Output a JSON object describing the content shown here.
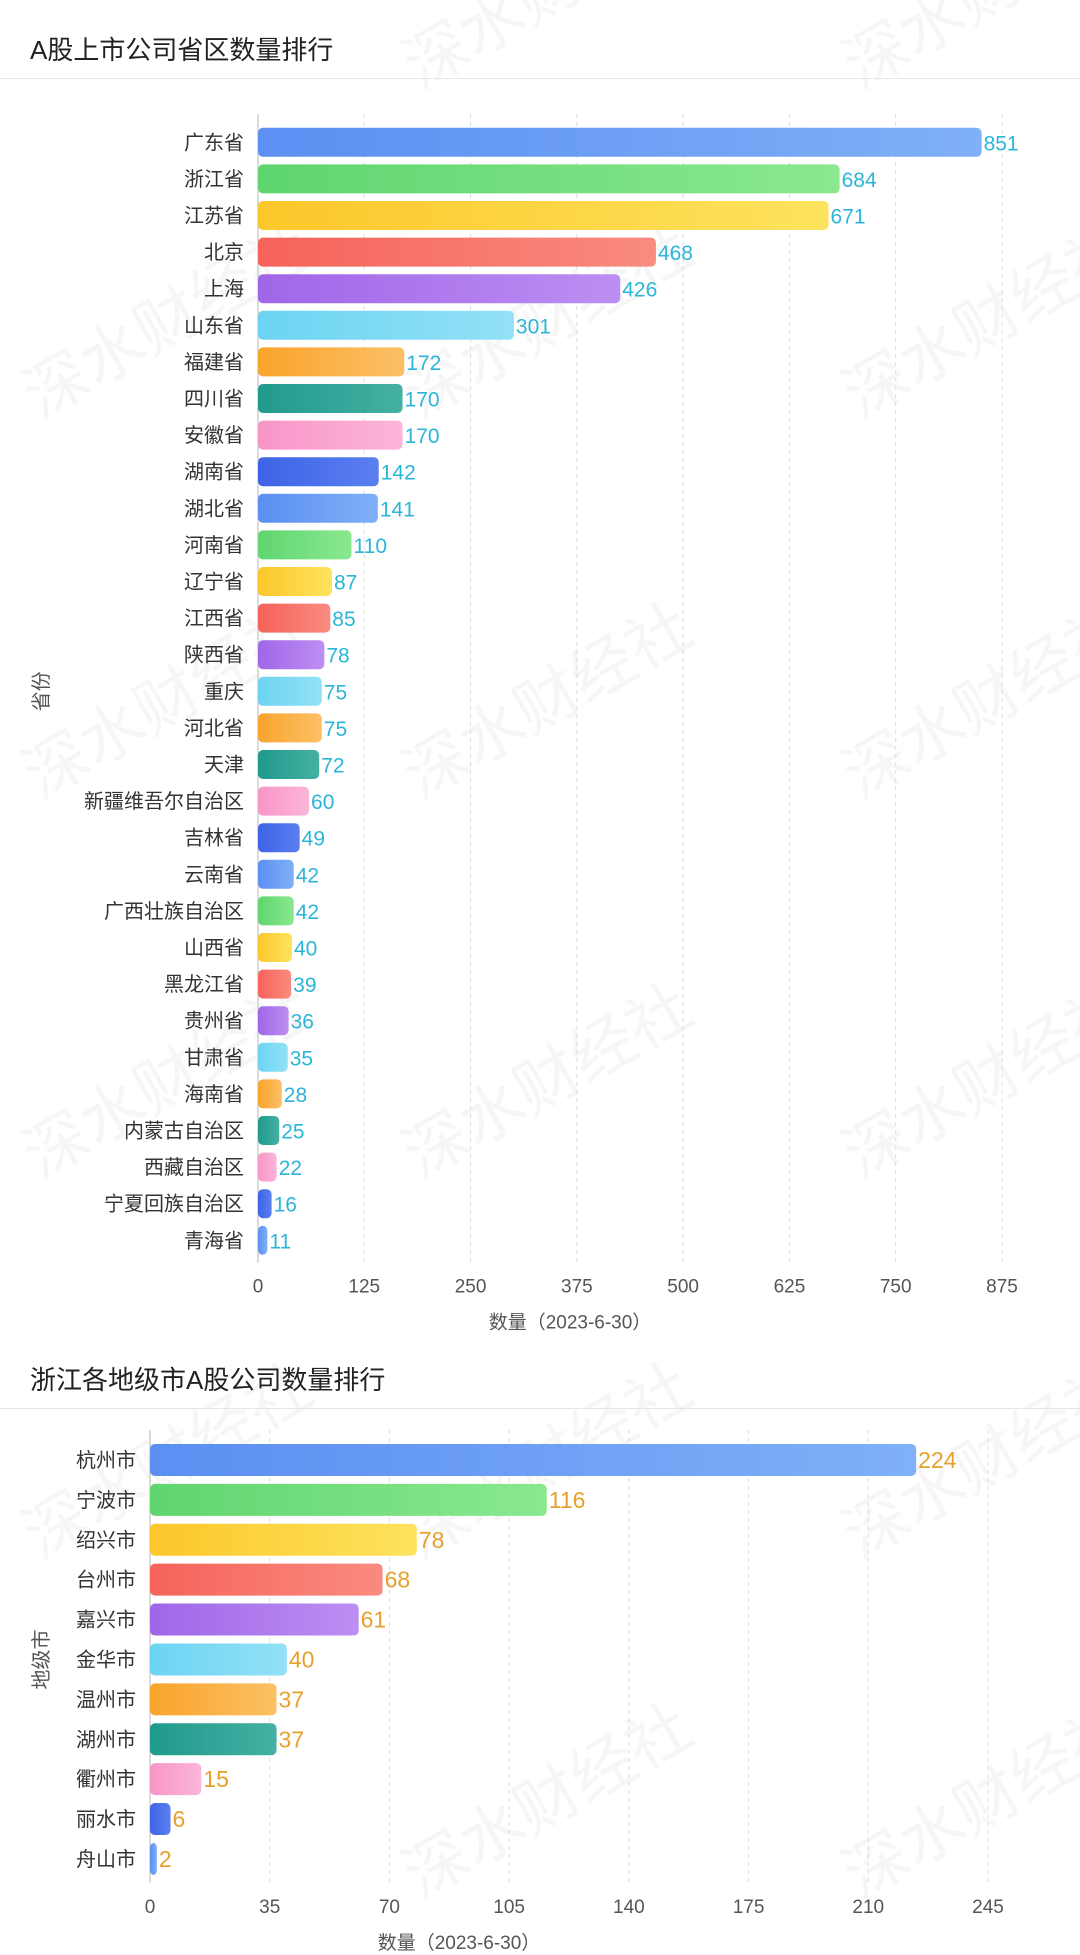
{
  "chart_data": [
    {
      "type": "bar",
      "orientation": "horizontal",
      "title": "A股上市公司省区数量排行",
      "ylabel": "省份",
      "xlabel": "数量（2023-6-30）",
      "xlim": [
        0,
        875
      ],
      "xticks": [
        0,
        125,
        250,
        375,
        500,
        625,
        750,
        875
      ],
      "grid": "vertical-dashed",
      "categories": [
        "广东省",
        "浙江省",
        "江苏省",
        "北京",
        "上海",
        "山东省",
        "福建省",
        "四川省",
        "安徽省",
        "湖南省",
        "湖北省",
        "河南省",
        "辽宁省",
        "江西省",
        "陕西省",
        "重庆",
        "河北省",
        "天津",
        "新疆维吾尔自治区",
        "吉林省",
        "云南省",
        "广西壮族自治区",
        "山西省",
        "黑龙江省",
        "贵州省",
        "甘肃省",
        "海南省",
        "内蒙古自治区",
        "西藏自治区",
        "宁夏回族自治区",
        "青海省"
      ],
      "values": [
        851,
        684,
        671,
        468,
        426,
        301,
        172,
        170,
        170,
        142,
        141,
        110,
        87,
        85,
        78,
        75,
        75,
        72,
        60,
        49,
        42,
        42,
        40,
        39,
        36,
        35,
        28,
        25,
        22,
        16,
        11
      ],
      "label_color": "#2bb5d8"
    },
    {
      "type": "bar",
      "orientation": "horizontal",
      "title": "浙江各地级市A股公司数量排行",
      "ylabel": "地级市",
      "xlabel": "数量（2023-6-30）",
      "xlim": [
        0,
        245
      ],
      "xticks": [
        0,
        35,
        70,
        105,
        140,
        175,
        210,
        245
      ],
      "grid": "vertical-dashed",
      "categories": [
        "杭州市",
        "宁波市",
        "绍兴市",
        "台州市",
        "嘉兴市",
        "金华市",
        "温州市",
        "湖州市",
        "衢州市",
        "丽水市",
        "舟山市"
      ],
      "values": [
        224,
        116,
        78,
        68,
        61,
        40,
        37,
        37,
        15,
        6,
        2
      ],
      "label_color": "#e8a02c"
    }
  ],
  "palette": [
    [
      "#5b8ff2",
      "#7fb0f8"
    ],
    [
      "#5fd56f",
      "#8ae88f"
    ],
    [
      "#fcc72a",
      "#fde35e"
    ],
    [
      "#f6635a",
      "#f98b80"
    ],
    [
      "#a066e8",
      "#bd8ef2"
    ],
    [
      "#6cd4f2",
      "#93e1f6"
    ],
    [
      "#f9a42c",
      "#fcc065"
    ],
    [
      "#1f9a8c",
      "#45b0a3"
    ],
    [
      "#f995c8",
      "#fbb6d9"
    ],
    [
      "#3e63e6",
      "#5b7ff0"
    ]
  ],
  "watermark": "深水财经社"
}
